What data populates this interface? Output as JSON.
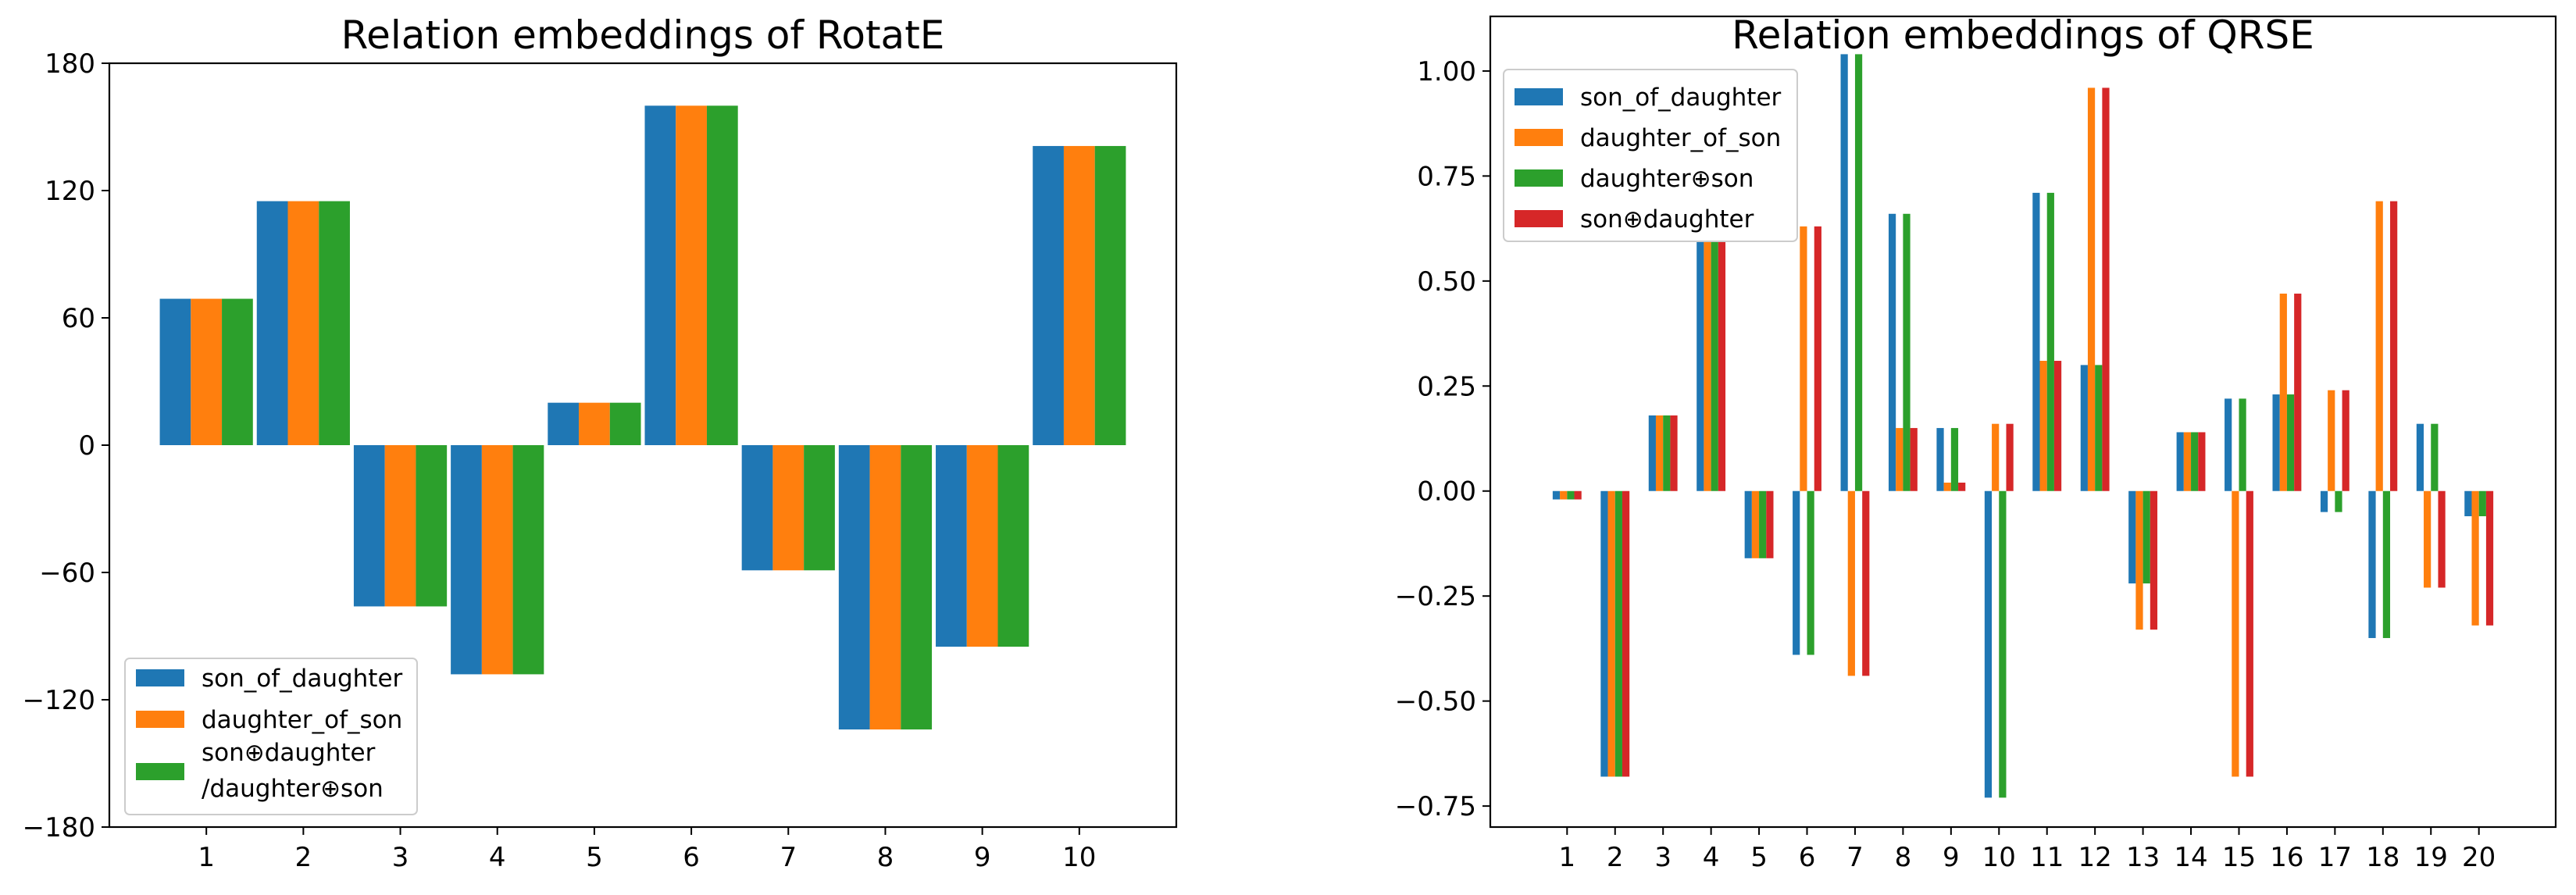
{
  "chart_data": [
    {
      "type": "bar",
      "title": "Relation embeddings of RotatE",
      "xlabel": "",
      "ylabel": "",
      "categories": [
        "1",
        "2",
        "3",
        "4",
        "5",
        "6",
        "7",
        "8",
        "9",
        "10"
      ],
      "ylim": [
        -180,
        180
      ],
      "yticks": [
        -180,
        -120,
        -60,
        0,
        60,
        120,
        180
      ],
      "ytick_labels": [
        "−180",
        "−120",
        "−60",
        "0",
        "60",
        "120",
        "180"
      ],
      "legend_position": "lower-left",
      "series": [
        {
          "name": "son_of_daughter",
          "color": "#1f77b4",
          "values": [
            69,
            115,
            -76,
            -108,
            20,
            160,
            -59,
            -134,
            -95,
            141
          ]
        },
        {
          "name": "daughter_of_son",
          "color": "#ff7f0e",
          "values": [
            69,
            115,
            -76,
            -108,
            20,
            160,
            -59,
            -134,
            -95,
            141
          ]
        },
        {
          "name": "son⊕daughter /daughter⊕son",
          "legend_lines": [
            "son⊕daughter",
            "/daughter⊕son"
          ],
          "color": "#2ca02c",
          "values": [
            69,
            115,
            -76,
            -108,
            20,
            160,
            -59,
            -134,
            -95,
            141
          ]
        }
      ]
    },
    {
      "type": "bar",
      "title": "Relation embeddings of QRSE",
      "xlabel": "",
      "ylabel": "",
      "categories": [
        "1",
        "2",
        "3",
        "4",
        "5",
        "6",
        "7",
        "8",
        "9",
        "10",
        "11",
        "12",
        "13",
        "14",
        "15",
        "16",
        "17",
        "18",
        "19",
        "20"
      ],
      "ylim": [
        -0.8,
        1.13
      ],
      "yticks": [
        -0.75,
        -0.5,
        -0.25,
        0.0,
        0.25,
        0.5,
        0.75,
        1.0
      ],
      "ytick_labels": [
        "−0.75",
        "−0.50",
        "−0.25",
        "0.00",
        "0.25",
        "0.50",
        "0.75",
        "1.00"
      ],
      "legend_position": "upper-left",
      "series": [
        {
          "name": "son_of_daughter",
          "color": "#1f77b4",
          "values": [
            -0.02,
            -0.68,
            0.18,
            0.62,
            -0.16,
            -0.39,
            1.04,
            0.66,
            0.15,
            -0.73,
            0.71,
            0.3,
            -0.22,
            0.14,
            0.22,
            0.23,
            -0.05,
            -0.35,
            0.16,
            -0.06
          ]
        },
        {
          "name": "daughter_of_son",
          "color": "#ff7f0e",
          "values": [
            -0.02,
            -0.68,
            0.18,
            0.62,
            -0.16,
            0.63,
            -0.44,
            0.15,
            0.02,
            0.16,
            0.31,
            0.96,
            -0.33,
            0.14,
            -0.68,
            0.47,
            0.24,
            0.69,
            -0.23,
            -0.32
          ]
        },
        {
          "name": "daughter⊕son",
          "color": "#2ca02c",
          "values": [
            -0.02,
            -0.68,
            0.18,
            0.62,
            -0.16,
            -0.39,
            1.04,
            0.66,
            0.15,
            -0.73,
            0.71,
            0.3,
            -0.22,
            0.14,
            0.22,
            0.23,
            -0.05,
            -0.35,
            0.16,
            -0.06
          ]
        },
        {
          "name": "son⊕daughter",
          "color": "#d62728",
          "values": [
            -0.02,
            -0.68,
            0.18,
            0.62,
            -0.16,
            0.63,
            -0.44,
            0.15,
            0.02,
            0.16,
            0.31,
            0.96,
            -0.33,
            0.14,
            -0.68,
            0.47,
            0.24,
            0.69,
            -0.23,
            -0.32
          ]
        }
      ]
    }
  ]
}
